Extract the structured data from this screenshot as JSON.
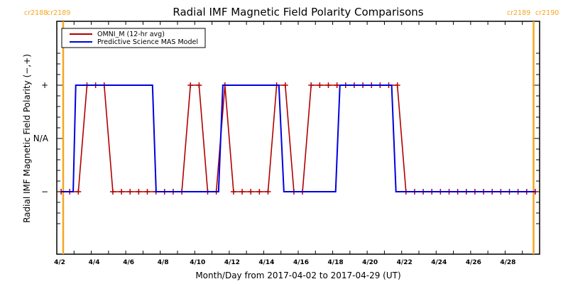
{
  "chart_data": {
    "type": "line",
    "title": "Radial IMF Magnetic Field Polarity Comparisons",
    "xlabel": "Month/Day from 2017-04-02 to 2017-04-29 (UT)",
    "ylabel": "Radial IMF Magnetic Field Polarity (−,+)",
    "x_unit": "days since 2017-04-02 00:00 UT",
    "xlim": [
      0,
      28
    ],
    "ylim": [
      -1.6,
      1.6
    ],
    "x_ticks": [
      {
        "day": 0,
        "label": "4/2"
      },
      {
        "day": 2,
        "label": "4/4"
      },
      {
        "day": 4,
        "label": "4/6"
      },
      {
        "day": 6,
        "label": "4/8"
      },
      {
        "day": 8,
        "label": "4/10"
      },
      {
        "day": 10,
        "label": "4/12"
      },
      {
        "day": 12,
        "label": "4/14"
      },
      {
        "day": 14,
        "label": "4/16"
      },
      {
        "day": 16,
        "label": "4/18"
      },
      {
        "day": 18,
        "label": "4/20"
      },
      {
        "day": 20,
        "label": "4/22"
      },
      {
        "day": 22,
        "label": "4/24"
      },
      {
        "day": 24,
        "label": "4/26"
      },
      {
        "day": 26,
        "label": "4/28"
      }
    ],
    "y_ticks": [
      {
        "value": 1,
        "label": "+"
      },
      {
        "value": 0,
        "label": "N/A"
      },
      {
        "value": -1,
        "label": "−"
      }
    ],
    "carrington_markers": [
      {
        "day": 0.37,
        "left_label": "cr2188",
        "right_label": "cr2189",
        "label_side": "left"
      },
      {
        "day": 27.65,
        "left_label": "cr2189",
        "right_label": "cr2190",
        "label_side": "right"
      }
    ],
    "legend": {
      "position": "top-left"
    },
    "series": [
      {
        "name": "OMNI_M (12-hr avg)",
        "color": "#b00000",
        "markers": true,
        "points": [
          [
            0.25,
            -1
          ],
          [
            0.75,
            -1
          ],
          [
            1.25,
            -1
          ],
          [
            1.75,
            1
          ],
          [
            2.25,
            1
          ],
          [
            2.75,
            1
          ],
          [
            3.25,
            -1
          ],
          [
            3.75,
            -1
          ],
          [
            4.25,
            -1
          ],
          [
            4.75,
            -1
          ],
          [
            5.25,
            -1
          ],
          [
            5.75,
            -1
          ],
          [
            6.25,
            -1
          ],
          [
            6.75,
            -1
          ],
          [
            7.25,
            -1
          ],
          [
            7.75,
            1
          ],
          [
            8.25,
            1
          ],
          [
            8.75,
            -1
          ],
          [
            9.25,
            -1
          ],
          [
            9.75,
            1
          ],
          [
            10.25,
            -1
          ],
          [
            10.75,
            -1
          ],
          [
            11.25,
            -1
          ],
          [
            11.75,
            -1
          ],
          [
            12.25,
            -1
          ],
          [
            12.75,
            1
          ],
          [
            13.25,
            1
          ],
          [
            13.75,
            -1
          ],
          [
            14.25,
            -1
          ],
          [
            14.75,
            1
          ],
          [
            15.25,
            1
          ],
          [
            15.75,
            1
          ],
          [
            16.25,
            1
          ],
          [
            16.75,
            1
          ],
          [
            17.25,
            1
          ],
          [
            17.75,
            1
          ],
          [
            18.25,
            1
          ],
          [
            18.75,
            1
          ],
          [
            19.25,
            1
          ],
          [
            19.75,
            1
          ],
          [
            20.25,
            -1
          ],
          [
            20.75,
            -1
          ],
          [
            21.25,
            -1
          ],
          [
            21.75,
            -1
          ],
          [
            22.25,
            -1
          ],
          [
            22.75,
            -1
          ],
          [
            23.25,
            -1
          ],
          [
            23.75,
            -1
          ],
          [
            24.25,
            -1
          ],
          [
            24.75,
            -1
          ],
          [
            25.25,
            -1
          ],
          [
            25.75,
            -1
          ],
          [
            26.25,
            -1
          ],
          [
            26.75,
            -1
          ],
          [
            27.25,
            -1
          ],
          [
            27.75,
            -1
          ]
        ]
      },
      {
        "name": "Predictive Science MAS Model",
        "color": "#0000e0",
        "markers": false,
        "points": [
          [
            0.25,
            -1
          ],
          [
            0.95,
            -1
          ],
          [
            1.1,
            1
          ],
          [
            5.55,
            1
          ],
          [
            5.76,
            -1
          ],
          [
            9.38,
            -1
          ],
          [
            9.63,
            1
          ],
          [
            12.88,
            1
          ],
          [
            13.17,
            -1
          ],
          [
            16.17,
            -1
          ],
          [
            16.42,
            1
          ],
          [
            19.42,
            1
          ],
          [
            19.67,
            -1
          ],
          [
            27.75,
            -1
          ]
        ]
      }
    ]
  }
}
